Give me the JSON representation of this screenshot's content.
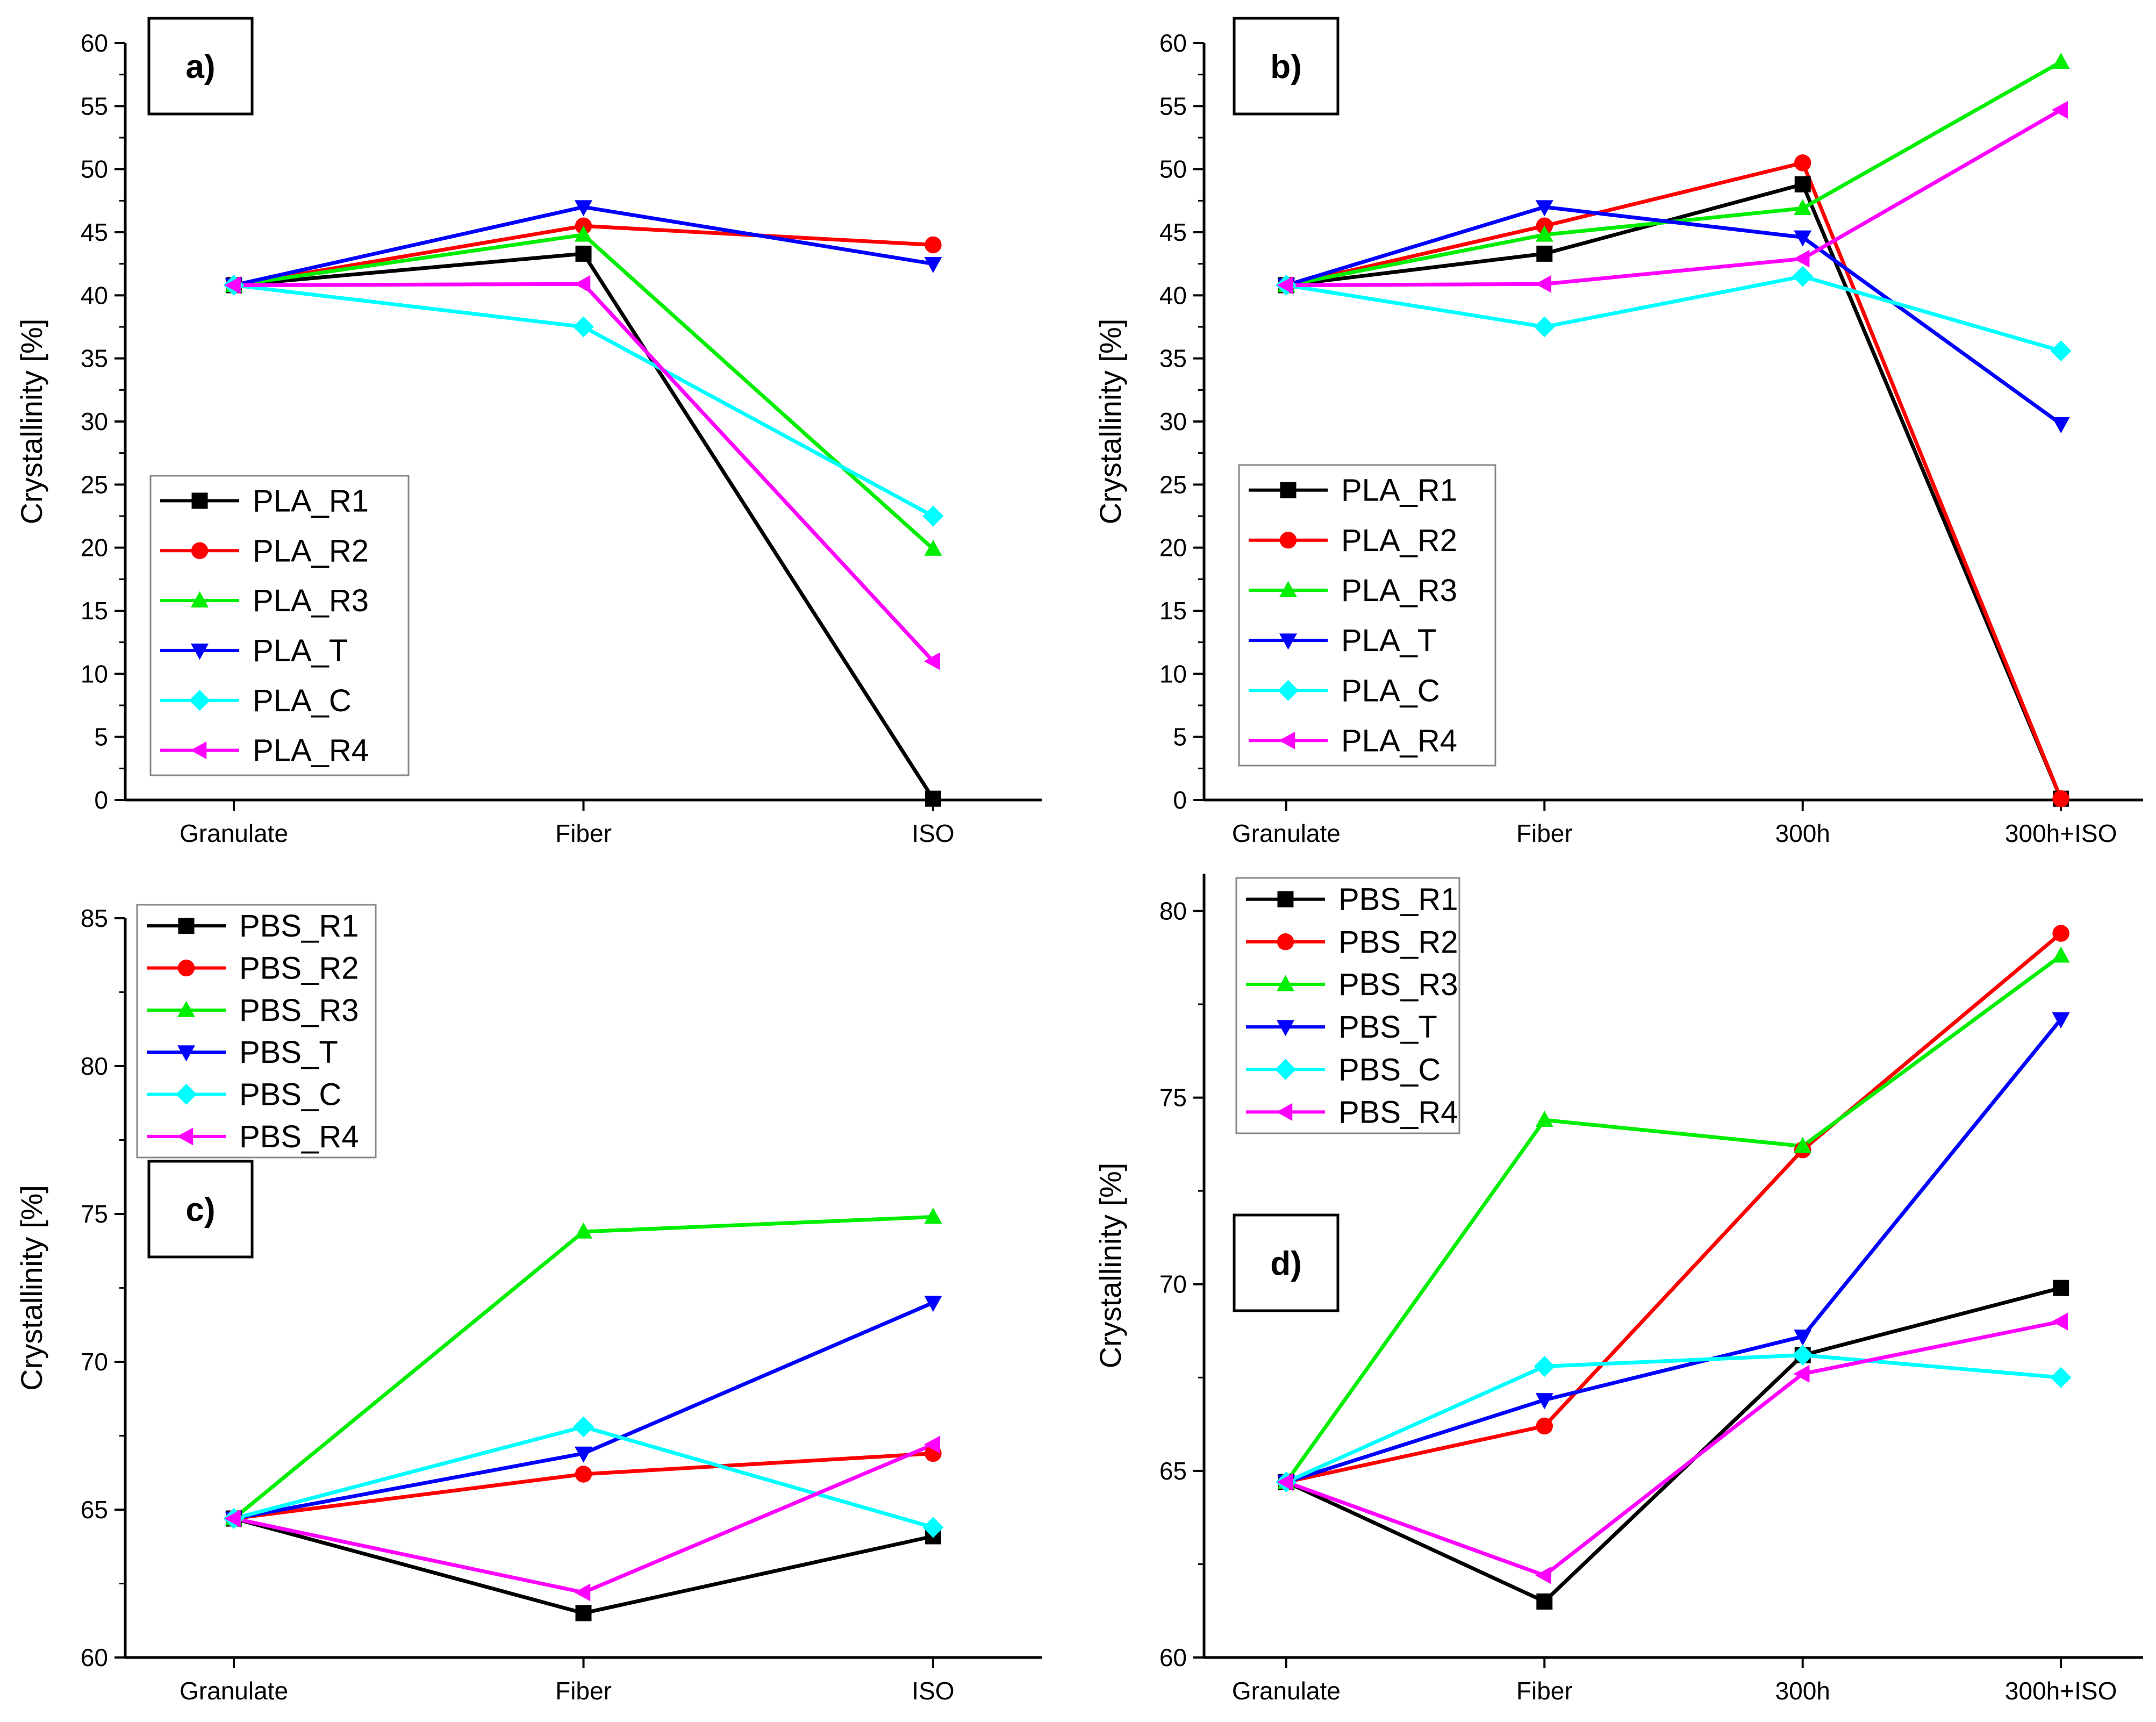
{
  "chart_data": [
    {
      "id": "a",
      "type": "line",
      "panel_label": "a)",
      "ylabel": "Crystallinity [%]",
      "xlabel": "",
      "ylim": [
        0,
        60
      ],
      "yticks": [
        "0",
        "5",
        "10",
        "15",
        "20",
        "25",
        "30",
        "35",
        "40",
        "45",
        "50",
        "55",
        "60"
      ],
      "legend_position": "bottom-left",
      "categories": [
        "Granulate",
        "Fiber",
        "ISO"
      ],
      "series": [
        {
          "name": "PLA_R1",
          "color": "#000000",
          "marker": "square",
          "values": [
            40.8,
            43.3,
            0.1
          ]
        },
        {
          "name": "PLA_R2",
          "color": "#ff0000",
          "marker": "circle",
          "values": [
            40.8,
            45.5,
            44.0
          ]
        },
        {
          "name": "PLA_R3",
          "color": "#00ee00",
          "marker": "triangle-up",
          "values": [
            40.8,
            44.8,
            19.9
          ]
        },
        {
          "name": "PLA_T",
          "color": "#0000ff",
          "marker": "triangle-down",
          "values": [
            40.8,
            47.0,
            42.5
          ]
        },
        {
          "name": "PLA_C",
          "color": "#00ffff",
          "marker": "diamond",
          "values": [
            40.8,
            37.5,
            22.5
          ]
        },
        {
          "name": "PLA_R4",
          "color": "#ff00ff",
          "marker": "triangle-left",
          "values": [
            40.8,
            40.9,
            11.0
          ]
        }
      ]
    },
    {
      "id": "b",
      "type": "line",
      "panel_label": "b)",
      "ylabel": "Crystallinity [%]",
      "xlabel": "",
      "ylim": [
        0,
        60
      ],
      "yticks": [
        "0",
        "5",
        "10",
        "15",
        "20",
        "25",
        "30",
        "35",
        "40",
        "45",
        "50",
        "55",
        "60"
      ],
      "legend_position": "bottom-left",
      "categories": [
        "Granulate",
        "Fiber",
        "300h",
        "300h+ISO"
      ],
      "series": [
        {
          "name": "PLA_R1",
          "color": "#000000",
          "marker": "square",
          "values": [
            40.8,
            43.3,
            48.8,
            0.1
          ]
        },
        {
          "name": "PLA_R2",
          "color": "#ff0000",
          "marker": "circle",
          "values": [
            40.8,
            45.5,
            50.5,
            0.1
          ]
        },
        {
          "name": "PLA_R3",
          "color": "#00ee00",
          "marker": "triangle-up",
          "values": [
            40.8,
            44.8,
            46.9,
            58.5
          ]
        },
        {
          "name": "PLA_T",
          "color": "#0000ff",
          "marker": "triangle-down",
          "values": [
            40.8,
            47.0,
            44.6,
            29.8
          ]
        },
        {
          "name": "PLA_C",
          "color": "#00ffff",
          "marker": "diamond",
          "values": [
            40.8,
            37.5,
            41.5,
            35.6
          ]
        },
        {
          "name": "PLA_R4",
          "color": "#ff00ff",
          "marker": "triangle-left",
          "values": [
            40.8,
            40.9,
            42.9,
            54.7
          ]
        }
      ]
    },
    {
      "id": "c",
      "type": "line",
      "panel_label": "c)",
      "ylabel": "Crystallinity [%]",
      "xlabel": "",
      "ylim": [
        60,
        85
      ],
      "yticks": [
        "60",
        "65",
        "70",
        "75",
        "80",
        "85"
      ],
      "legend_position": "top-left",
      "categories": [
        "Granulate",
        "Fiber",
        "ISO"
      ],
      "series": [
        {
          "name": "PBS_R1",
          "color": "#000000",
          "marker": "square",
          "values": [
            64.7,
            61.5,
            64.1
          ]
        },
        {
          "name": "PBS_R2",
          "color": "#ff0000",
          "marker": "circle",
          "values": [
            64.7,
            66.2,
            66.9
          ]
        },
        {
          "name": "PBS_R3",
          "color": "#00ee00",
          "marker": "triangle-up",
          "values": [
            64.7,
            74.4,
            74.9
          ]
        },
        {
          "name": "PBS_T",
          "color": "#0000ff",
          "marker": "triangle-down",
          "values": [
            64.7,
            66.9,
            72.0
          ]
        },
        {
          "name": "PBS_C",
          "color": "#00ffff",
          "marker": "diamond",
          "values": [
            64.7,
            67.8,
            64.4
          ]
        },
        {
          "name": "PBS_R4",
          "color": "#ff00ff",
          "marker": "triangle-left",
          "values": [
            64.7,
            62.2,
            67.2
          ]
        }
      ]
    },
    {
      "id": "d",
      "type": "line",
      "panel_label": "d)",
      "ylabel": "Crystallinity [%]",
      "xlabel": "",
      "ylim": [
        60,
        81
      ],
      "yticks": [
        "60",
        "65",
        "70",
        "75",
        "80"
      ],
      "legend_position": "top-left",
      "categories": [
        "Granulate",
        "Fiber",
        "300h",
        "300h+ISO"
      ],
      "series": [
        {
          "name": "PBS_R1",
          "color": "#000000",
          "marker": "square",
          "values": [
            64.7,
            61.5,
            68.1,
            69.9
          ]
        },
        {
          "name": "PBS_R2",
          "color": "#ff0000",
          "marker": "circle",
          "values": [
            64.7,
            66.2,
            73.6,
            79.4
          ]
        },
        {
          "name": "PBS_R3",
          "color": "#00ee00",
          "marker": "triangle-up",
          "values": [
            64.7,
            74.4,
            73.7,
            78.8
          ]
        },
        {
          "name": "PBS_T",
          "color": "#0000ff",
          "marker": "triangle-down",
          "values": [
            64.7,
            66.9,
            68.6,
            77.1
          ]
        },
        {
          "name": "PBS_C",
          "color": "#00ffff",
          "marker": "diamond",
          "values": [
            64.7,
            67.8,
            68.1,
            67.5
          ]
        },
        {
          "name": "PBS_R4",
          "color": "#ff00ff",
          "marker": "triangle-left",
          "values": [
            64.7,
            62.2,
            67.6,
            69.0
          ]
        }
      ]
    }
  ]
}
